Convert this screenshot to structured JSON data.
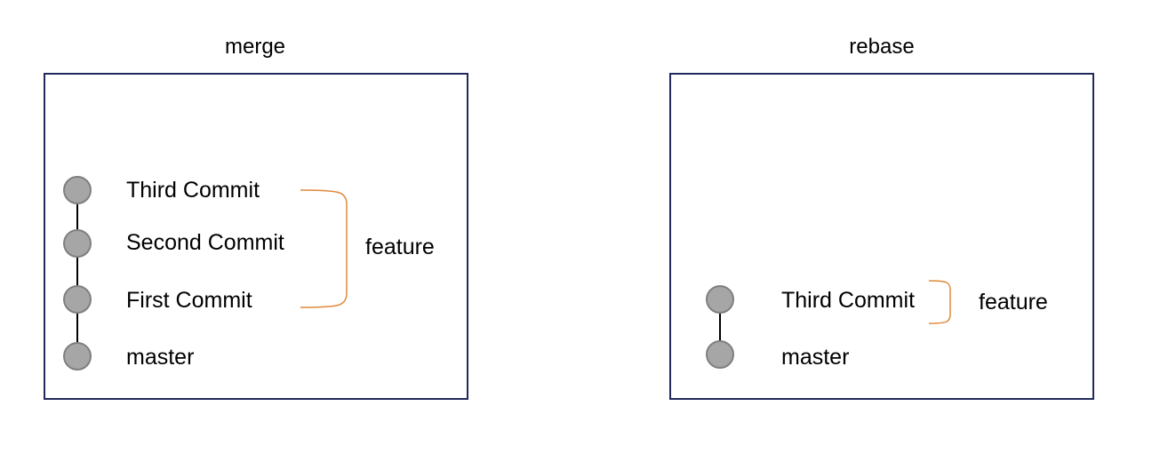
{
  "colors": {
    "frame_border": "#1f2a5a",
    "node_fill": "#a6a6a6",
    "node_border": "#7f7f7f",
    "edge": "#000000",
    "bracket": "#e0893a"
  },
  "merge": {
    "title": "merge",
    "commits": [
      "Third Commit",
      "Second Commit",
      "First Commit",
      "master"
    ],
    "branch_label": "feature"
  },
  "rebase": {
    "title": "rebase",
    "commits": [
      "Third Commit",
      "master"
    ],
    "branch_label": "feature"
  }
}
